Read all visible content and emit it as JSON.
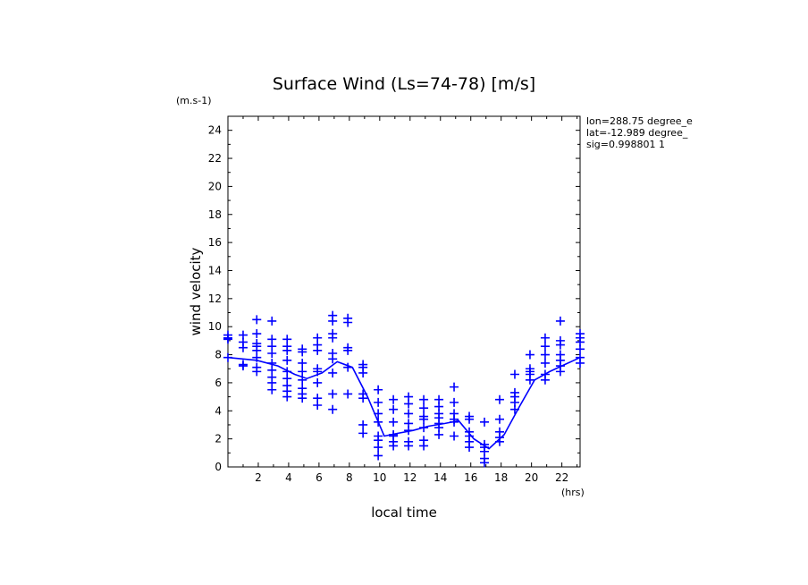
{
  "chart_data": {
    "type": "scatter",
    "title": "Surface Wind  (Ls=74-78) [m/s]",
    "y_unit": "(m.s-1)",
    "x_unit": "(hrs)",
    "xlabel": "local time",
    "ylabel": "wind velocity",
    "xlim": [
      0,
      23.2
    ],
    "ylim": [
      0,
      25
    ],
    "xticks": [
      "2",
      "4",
      "6",
      "8",
      "10",
      "12",
      "14",
      "16",
      "18",
      "20",
      "22"
    ],
    "yticks": [
      "0",
      "2",
      "4",
      "6",
      "8",
      "10",
      "12",
      "14",
      "16",
      "18",
      "20",
      "22",
      "24"
    ],
    "info_lines": [
      "lon=288.75 degree_e",
      "lat=-12.989 degree_",
      "sig=0.998801 1"
    ],
    "color": "#0000ff",
    "mean_line": {
      "x": [
        0.0,
        1.9,
        3.3,
        4.4,
        5.2,
        6.2,
        7.2,
        8.2,
        9.2,
        10.3,
        11.2,
        12.2,
        13.2,
        14.3,
        15.2,
        16.2,
        17.2,
        18.2,
        19.2,
        20.2,
        21.2,
        22.2,
        23.2
      ],
      "y": [
        7.8,
        7.6,
        7.2,
        6.6,
        6.3,
        6.7,
        7.5,
        7.1,
        5.0,
        2.2,
        2.4,
        2.6,
        2.9,
        3.1,
        3.3,
        2.0,
        1.3,
        2.3,
        4.3,
        6.2,
        6.8,
        7.3,
        7.8
      ]
    },
    "series": [
      {
        "x": 0.0,
        "values": [
          9.4,
          9.2,
          9.1,
          7.8
        ]
      },
      {
        "x": 1.0,
        "values": [
          9.4,
          8.9,
          8.5,
          7.3,
          7.2
        ]
      },
      {
        "x": 1.9,
        "values": [
          10.5,
          9.5,
          8.8,
          8.6,
          8.3,
          7.8,
          7.1,
          6.8
        ]
      },
      {
        "x": 2.9,
        "values": [
          10.4,
          9.1,
          8.6,
          8.1,
          7.4,
          6.9,
          6.4,
          6.0,
          5.5
        ]
      },
      {
        "x": 3.9,
        "values": [
          9.1,
          8.6,
          8.3,
          7.6,
          6.8,
          6.3,
          5.8,
          5.4,
          5.0
        ]
      },
      {
        "x": 4.9,
        "values": [
          8.4,
          8.2,
          7.4,
          6.8,
          6.2,
          5.6,
          5.2,
          4.9
        ]
      },
      {
        "x": 5.9,
        "values": [
          9.2,
          8.7,
          8.3,
          7.0,
          6.8,
          6.0,
          4.9,
          4.4
        ]
      },
      {
        "x": 6.9,
        "values": [
          10.8,
          10.4,
          9.5,
          9.2,
          8.1,
          7.7,
          6.7,
          5.2,
          4.1
        ]
      },
      {
        "x": 7.9,
        "values": [
          10.6,
          10.3,
          8.5,
          8.3,
          7.1,
          5.2
        ]
      },
      {
        "x": 8.9,
        "values": [
          7.3,
          7.1,
          6.7,
          5.2,
          4.9,
          3.0,
          2.4
        ]
      },
      {
        "x": 9.9,
        "values": [
          5.5,
          4.6,
          3.8,
          3.2,
          2.2,
          1.9,
          1.4,
          0.8
        ]
      },
      {
        "x": 10.9,
        "values": [
          4.8,
          4.1,
          3.2,
          2.3,
          2.2,
          1.8,
          1.5
        ]
      },
      {
        "x": 11.9,
        "values": [
          5.0,
          4.5,
          3.8,
          3.1,
          2.6,
          1.8,
          1.5
        ]
      },
      {
        "x": 12.9,
        "values": [
          4.8,
          4.2,
          3.6,
          3.4,
          2.8,
          1.9,
          1.5
        ]
      },
      {
        "x": 13.9,
        "values": [
          4.8,
          4.3,
          3.8,
          3.5,
          3.1,
          2.8,
          2.3
        ]
      },
      {
        "x": 14.9,
        "values": [
          5.7,
          4.6,
          3.8,
          3.4,
          3.2,
          2.2
        ]
      },
      {
        "x": 15.9,
        "values": [
          3.6,
          3.4,
          2.5,
          2.2,
          1.8,
          1.4
        ]
      },
      {
        "x": 16.9,
        "values": [
          3.2,
          1.6,
          1.4,
          1.1,
          0.6,
          0.3
        ]
      },
      {
        "x": 17.9,
        "values": [
          4.8,
          3.4,
          2.5,
          2.1,
          1.8
        ]
      },
      {
        "x": 18.9,
        "values": [
          6.6,
          5.3,
          5.0,
          4.6,
          4.1
        ]
      },
      {
        "x": 19.9,
        "values": [
          8.0,
          7.0,
          6.8,
          6.6,
          6.2
        ]
      },
      {
        "x": 20.9,
        "values": [
          9.2,
          8.6,
          8.0,
          7.4,
          6.6,
          6.2
        ]
      },
      {
        "x": 21.9,
        "values": [
          10.4,
          9.0,
          8.7,
          8.0,
          7.6,
          7.2,
          6.8
        ]
      },
      {
        "x": 23.2,
        "values": [
          9.5,
          9.2,
          8.9,
          8.4,
          7.8,
          7.4
        ]
      }
    ]
  }
}
